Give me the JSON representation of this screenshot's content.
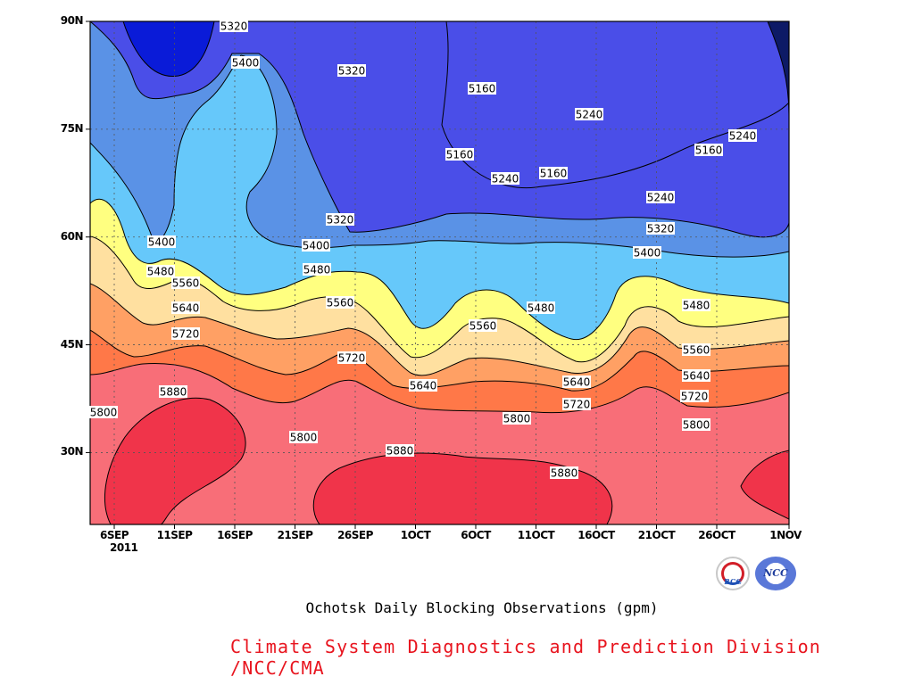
{
  "chart_data": {
    "type": "contour",
    "title": "Ochotsk Daily Blocking Observations (gpm)",
    "credit": "Climate System Diagnostics and Prediction Division /NCC/CMA",
    "x_ticks": [
      "6SEP",
      "11SEP",
      "16SEP",
      "21SEP",
      "26SEP",
      "1OCT",
      "6OCT",
      "11OCT",
      "16OCT",
      "21OCT",
      "26OCT",
      "1NOV"
    ],
    "x_year_label": "2011",
    "y_ticks": [
      "90N",
      "75N",
      "60N",
      "45N",
      "30N"
    ],
    "xlim": [
      "4SEP 2011",
      "1NOV 2011"
    ],
    "ylim": [
      20,
      90
    ],
    "ylabel_units": "latitude (degrees N)",
    "value_units": "gpm",
    "contour_levels": [
      5160,
      5240,
      5320,
      5400,
      5480,
      5560,
      5640,
      5720,
      5800,
      5880
    ],
    "fill_colors": {
      "below_5160": "#0d1a66",
      "5160_5240": "#0a1bd8",
      "5240_5320": "#4a4ee8",
      "5320_5400": "#5a92e6",
      "5400_5480": "#66c8fa",
      "5480_5560": "#ffff80",
      "5560_5640": "#ffe0a0",
      "5640_5720": "#ffa064",
      "5720_5800": "#ff7848",
      "5800_5880": "#f86e78",
      "above_5880": "#f0344a"
    },
    "contour_labels": [
      "5320",
      "5400",
      "5320",
      "5160",
      "5160",
      "5240",
      "5160",
      "5240",
      "5240",
      "5160",
      "5240",
      "5320",
      "5400",
      "5320",
      "5400",
      "5480",
      "5400",
      "5560",
      "5480",
      "5640",
      "5480",
      "5560",
      "5560",
      "5480",
      "5720",
      "5720",
      "5560",
      "5880",
      "5640",
      "5640",
      "5720",
      "5640",
      "5720",
      "5800",
      "5800",
      "5880",
      "5800",
      "5800",
      "5880"
    ],
    "grid": true
  }
}
